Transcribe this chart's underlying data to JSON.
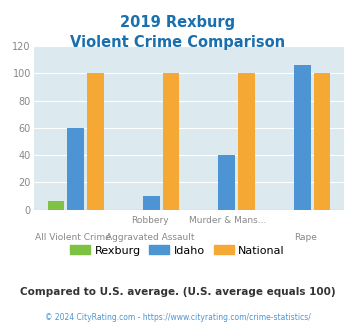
{
  "title_line1": "2019 Rexburg",
  "title_line2": "Violent Crime Comparison",
  "cat_labels_top": [
    "",
    "Robbery",
    "Murder & Mans...",
    ""
  ],
  "cat_labels_bottom": [
    "All Violent Crime",
    "Aggravated Assault",
    "",
    "Rape"
  ],
  "rexburg": [
    6,
    0,
    0,
    0
  ],
  "idaho": [
    60,
    10,
    40,
    106
  ],
  "national": [
    100,
    100,
    100,
    100
  ],
  "colors": {
    "rexburg": "#7dc242",
    "idaho": "#4d94d4",
    "national": "#f5a833"
  },
  "ylim": [
    0,
    120
  ],
  "yticks": [
    0,
    20,
    40,
    60,
    80,
    100,
    120
  ],
  "title_color": "#1a6faf",
  "bg_color": "#dce9ef",
  "note_text": "Compared to U.S. average. (U.S. average equals 100)",
  "note_color": "#333333",
  "footer_text": "© 2024 CityRating.com - https://www.cityrating.com/crime-statistics/",
  "footer_color": "#4d94d4",
  "legend_labels": [
    "Rexburg",
    "Idaho",
    "National"
  ]
}
